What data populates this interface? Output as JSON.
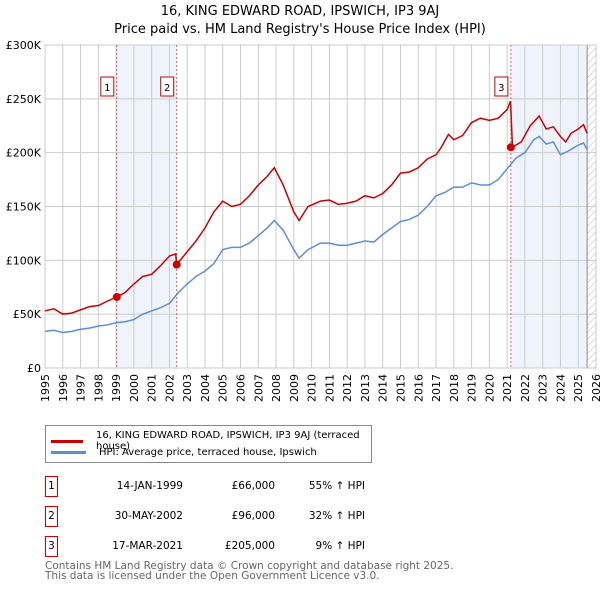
{
  "title": "16, KING EDWARD ROAD, IPSWICH, IP3 9AJ",
  "subtitle": "Price paid vs. HM Land Registry's House Price Index (HPI)",
  "chart_data": {
    "type": "line",
    "xlim": [
      1995,
      2026
    ],
    "ylim": [
      0,
      300000
    ],
    "yticks": [
      0,
      50000,
      100000,
      150000,
      200000,
      250000,
      300000
    ],
    "ytick_labels": [
      "£0",
      "£50K",
      "£100K",
      "£150K",
      "£200K",
      "£250K",
      "£300K"
    ],
    "xticks": [
      1995,
      1996,
      1997,
      1998,
      1999,
      2000,
      2001,
      2002,
      2003,
      2004,
      2005,
      2006,
      2007,
      2008,
      2009,
      2010,
      2011,
      2012,
      2013,
      2014,
      2015,
      2016,
      2017,
      2018,
      2019,
      2020,
      2021,
      2022,
      2023,
      2024,
      2025,
      2026
    ],
    "grid": true,
    "series": [
      {
        "name": "16, KING EDWARD ROAD, IPSWICH, IP3 9AJ (terraced house)",
        "color": "#cc0000",
        "x": [
          1995,
          1995.5,
          1996,
          1996.5,
          1997,
          1997.5,
          1998,
          1998.5,
          1999.04,
          1999.5,
          2000,
          2000.5,
          2001,
          2001.5,
          2002,
          2002.35,
          2002.41,
          2003,
          2003.5,
          2004,
          2004.5,
          2005,
          2005.5,
          2006,
          2006.5,
          2007,
          2007.5,
          2007.9,
          2008.4,
          2009,
          2009.3,
          2009.8,
          2010.5,
          2011,
          2011.5,
          2012,
          2012.5,
          2013,
          2013.5,
          2014,
          2014.5,
          2015,
          2015.5,
          2016,
          2016.5,
          2017,
          2017.3,
          2017.7,
          2018,
          2018.5,
          2019,
          2019.5,
          2020,
          2020.5,
          2021.0,
          2021.19,
          2021.3,
          2021.8,
          2022.3,
          2022.8,
          2023.2,
          2023.6,
          2024,
          2024.3,
          2024.6,
          2025,
          2025.3,
          2025.5
        ],
        "y": [
          53000,
          55000,
          50000,
          51000,
          54000,
          57000,
          58000,
          62000,
          66000,
          70000,
          78000,
          85000,
          87000,
          95000,
          104000,
          106000,
          96000,
          108000,
          118000,
          130000,
          145000,
          155000,
          150000,
          152000,
          160000,
          170000,
          178000,
          186000,
          170000,
          145000,
          137000,
          150000,
          155000,
          156000,
          152000,
          153000,
          155000,
          160000,
          158000,
          162000,
          170000,
          181000,
          182000,
          186000,
          194000,
          198000,
          205000,
          217000,
          212000,
          216000,
          228000,
          232000,
          230000,
          232000,
          240000,
          248000,
          205000,
          210000,
          225000,
          234000,
          222000,
          224000,
          215000,
          210000,
          218000,
          222000,
          226000,
          218000
        ]
      },
      {
        "name": "HPI: Average price, terraced house, Ipswich",
        "color": "#5b8fd4",
        "x": [
          1995,
          1995.5,
          1996,
          1996.5,
          1997,
          1997.5,
          1998,
          1998.5,
          1999,
          1999.5,
          2000,
          2000.5,
          2001,
          2001.5,
          2002,
          2002.5,
          2003,
          2003.5,
          2004,
          2004.5,
          2005,
          2005.5,
          2006,
          2006.5,
          2007,
          2007.5,
          2007.9,
          2008.4,
          2009,
          2009.3,
          2009.8,
          2010.5,
          2011,
          2011.5,
          2012,
          2012.5,
          2013,
          2013.5,
          2014,
          2014.5,
          2015,
          2015.5,
          2016,
          2016.5,
          2017,
          2017.5,
          2018,
          2018.5,
          2019,
          2019.5,
          2020,
          2020.5,
          2021,
          2021.5,
          2022,
          2022.5,
          2022.8,
          2023.2,
          2023.6,
          2024,
          2024.5,
          2025,
          2025.3,
          2025.5
        ],
        "y": [
          34000,
          35000,
          33000,
          34000,
          36000,
          37000,
          39000,
          40000,
          42000,
          43000,
          45000,
          50000,
          53000,
          56000,
          60000,
          70000,
          78000,
          85000,
          90000,
          97000,
          110000,
          112000,
          112000,
          116000,
          123000,
          130000,
          137000,
          128000,
          110000,
          102000,
          110000,
          116000,
          116000,
          114000,
          114000,
          116000,
          118000,
          117000,
          124000,
          130000,
          136000,
          138000,
          142000,
          150000,
          160000,
          163000,
          168000,
          168000,
          172000,
          170000,
          170000,
          175000,
          185000,
          195000,
          200000,
          212000,
          215000,
          208000,
          210000,
          198000,
          202000,
          207000,
          209000,
          203000
        ]
      }
    ],
    "sales": [
      {
        "num": "1",
        "x": 1999.04,
        "date": "14-JAN-1999",
        "price": "£66,000",
        "value": 66000,
        "hpi": "55% ↑ HPI"
      },
      {
        "num": "2",
        "x": 2002.41,
        "date": "30-MAY-2002",
        "price": "£96,000",
        "value": 96000,
        "hpi": "32% ↑ HPI"
      },
      {
        "num": "3",
        "x": 2021.21,
        "date": "17-MAR-2021",
        "price": "£205,000",
        "value": 205000,
        "hpi": "9% ↑ HPI"
      }
    ],
    "data_end": 2025.5
  },
  "footer": {
    "line1": "Contains HM Land Registry data © Crown copyright and database right 2025.",
    "line2": "This data is licensed under the Open Government Licence v3.0."
  }
}
